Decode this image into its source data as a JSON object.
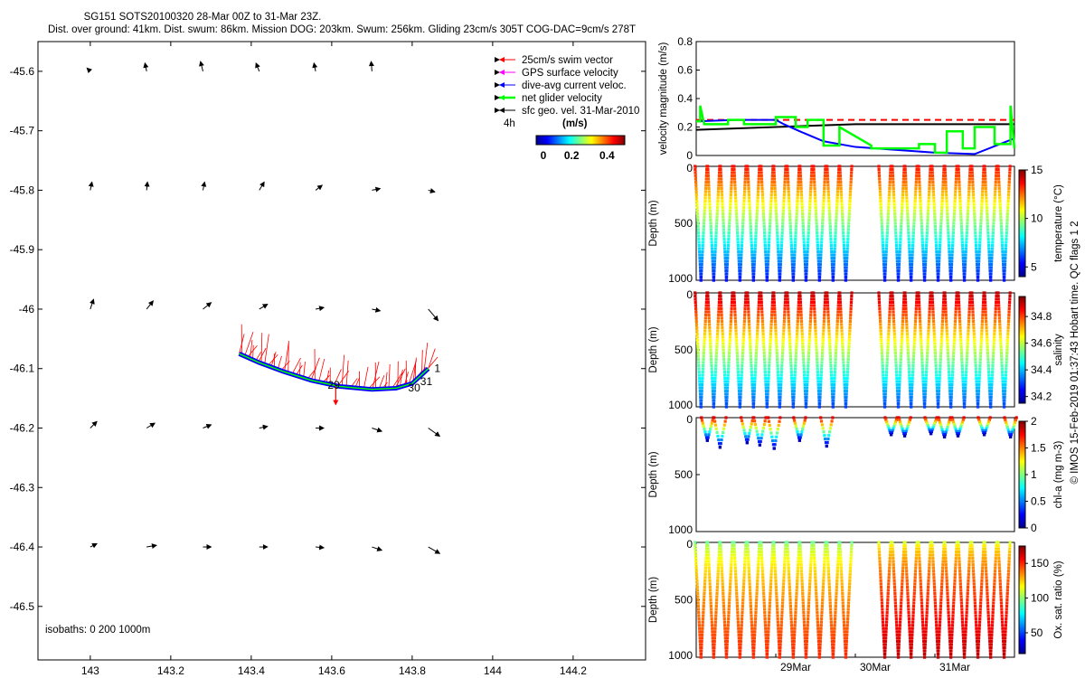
{
  "figure_title": {
    "line1": "SG151 SOTS20100320 28-Mar 00Z to 31-Mar 23Z.",
    "line2": "Dist. over ground: 41km. Dist. swum: 86km. Mission DOG: 203km. Swum: 256km. Gliding 23cm/s 305T COG-DAC=9cm/s 278T"
  },
  "watermark": "© IMOS 15-Feb-2019 01:37:43 Hobart time. QC flags 1  2",
  "colors": {
    "swim": "#ff0000",
    "gps": "#ff00ff",
    "dac": "#0000ff",
    "net": "#00ff00",
    "geo": "#000000"
  },
  "chart_data": [
    {
      "id": "map",
      "type": "scatter",
      "title": "glider track map",
      "xlim": [
        142.87,
        144.38
      ],
      "ylim": [
        -46.59,
        -45.55
      ],
      "xticks": [
        143,
        143.2,
        143.4,
        143.6,
        143.8,
        144,
        144.2
      ],
      "xtick_labels": [
        "143",
        "143.2",
        "143.4",
        "143.6",
        "143.8",
        "144",
        "144.2"
      ],
      "yticks": [
        -45.6,
        -45.7,
        -45.8,
        -45.9,
        -46,
        -46.1,
        -46.2,
        -46.3,
        -46.4,
        -46.5
      ],
      "ytick_labels": [
        "-45.6",
        "-45.7",
        "-45.8",
        "-45.9",
        "-46",
        "-46.1",
        "-46.2",
        "-46.3",
        "-46.4",
        "-46.5"
      ],
      "legend": [
        {
          "label": "25cm/s swim vector",
          "color": "#ff0000"
        },
        {
          "label": "GPS surface velocity",
          "color": "#ff00ff"
        },
        {
          "label": "dive-avg current veloc.",
          "color": "#0000ff"
        },
        {
          "label": "net glider velocity",
          "color": "#00ff00"
        },
        {
          "label": "sfc geo. vel. 31-Mar-2010",
          "color": "#000000"
        }
      ],
      "legend_position": "top-right",
      "colorbar": {
        "label": "(m/s)",
        "ticks": [
          "0",
          "0.2",
          "0.4"
        ],
        "range": [
          0,
          0.5
        ]
      },
      "scale_label": "4h",
      "isobaths_label": "isobaths: 0   200  1000m",
      "track": [
        [
          143.37,
          -46.075
        ],
        [
          143.42,
          -46.09
        ],
        [
          143.48,
          -46.105
        ],
        [
          143.55,
          -46.12
        ],
        [
          143.62,
          -46.13
        ],
        [
          143.7,
          -46.135
        ],
        [
          143.76,
          -46.133
        ],
        [
          143.8,
          -46.125
        ],
        [
          143.84,
          -46.1
        ]
      ],
      "track_labels": [
        {
          "text": "1",
          "lon": 143.855,
          "lat": -46.1
        },
        {
          "text": "31",
          "lon": 143.82,
          "lat": -46.122
        },
        {
          "text": "30",
          "lon": 143.79,
          "lat": -46.132
        },
        {
          "text": "29",
          "lon": 143.59,
          "lat": -46.128
        }
      ],
      "geo_grid_lon": [
        143.0,
        143.14,
        143.28,
        143.42,
        143.56,
        143.7,
        143.84,
        143.98,
        144.12,
        144.26
      ],
      "geo_grid_lat": [
        -45.6,
        -45.8,
        -46.0,
        -46.2,
        -46.4
      ],
      "geo_vectors": [
        [
          [
            -0.02,
            0.02
          ],
          [
            -0.01,
            0.05
          ],
          [
            -0.015,
            0.06
          ],
          [
            -0.02,
            0.05
          ],
          [
            -0.01,
            0.05
          ],
          [
            -0.005,
            0.06
          ],
          [
            0.0,
            0.0
          ],
          [
            0.0,
            0.0
          ],
          [
            0.0,
            0.0
          ],
          [
            0.0,
            0.0
          ]
        ],
        [
          [
            0.01,
            0.05
          ],
          [
            0.005,
            0.05
          ],
          [
            0.01,
            0.05
          ],
          [
            0.03,
            0.05
          ],
          [
            0.04,
            0.03
          ],
          [
            0.05,
            0.01
          ],
          [
            0.04,
            -0.01
          ],
          [
            0.0,
            0.0
          ],
          [
            0.0,
            0.0
          ],
          [
            0.0,
            0.0
          ]
        ],
        [
          [
            0.02,
            0.06
          ],
          [
            0.04,
            0.05
          ],
          [
            0.05,
            0.04
          ],
          [
            0.05,
            0.03
          ],
          [
            0.05,
            0.01
          ],
          [
            0.05,
            -0.01
          ],
          [
            0.06,
            -0.07
          ],
          [
            0.0,
            0.0
          ],
          [
            0.0,
            0.0
          ],
          [
            0.0,
            0.0
          ]
        ],
        [
          [
            0.04,
            0.04
          ],
          [
            0.05,
            0.03
          ],
          [
            0.05,
            0.02
          ],
          [
            0.05,
            0.01
          ],
          [
            0.05,
            0.0
          ],
          [
            0.06,
            -0.02
          ],
          [
            0.07,
            -0.05
          ],
          [
            0.0,
            0.0
          ],
          [
            0.0,
            0.0
          ],
          [
            0.0,
            0.0
          ]
        ],
        [
          [
            0.04,
            0.02
          ],
          [
            0.06,
            0.01
          ],
          [
            0.05,
            0.0
          ],
          [
            0.05,
            0.0
          ],
          [
            0.05,
            -0.005
          ],
          [
            0.06,
            -0.02
          ],
          [
            0.07,
            -0.04
          ],
          [
            0.0,
            0.0
          ],
          [
            0.0,
            0.0
          ],
          [
            0.0,
            0.0
          ]
        ]
      ]
    },
    {
      "id": "velocity",
      "type": "line",
      "ylabel": "velocity magnitude (m/s)",
      "ylim": [
        0,
        0.8
      ],
      "yticks": [
        "0",
        "0.2",
        "0.4",
        "0.6",
        "0.8"
      ],
      "xlim": [
        0,
        4
      ],
      "series": [
        {
          "name": "swim speed",
          "color": "#ff0000",
          "dashed": true,
          "x": [
            0,
            0.25,
            0.5,
            0.75,
            1.0,
            1.25,
            1.5,
            1.75,
            2.0,
            2.15,
            2.25,
            2.5,
            2.75,
            3.0,
            3.25,
            3.5,
            3.75,
            4.0
          ],
          "y": [
            0.25,
            0.25,
            0.25,
            0.25,
            0.25,
            0.25,
            0.25,
            0.25,
            0.25,
            0.25,
            0.25,
            0.25,
            0.25,
            0.25,
            0.25,
            0.25,
            0.25,
            0.25
          ]
        },
        {
          "name": "geostrophic",
          "color": "#000000",
          "x": [
            0,
            1,
            2,
            3,
            4
          ],
          "y": [
            0.18,
            0.2,
            0.22,
            0.22,
            0.22
          ]
        },
        {
          "name": "dive-avg current",
          "color": "#0000ff",
          "x": [
            0,
            0.5,
            1.0,
            1.1,
            1.3,
            1.6,
            2.0,
            2.5,
            3.0,
            3.5,
            4.0
          ],
          "y": [
            0.24,
            0.25,
            0.25,
            0.22,
            0.17,
            0.1,
            0.06,
            0.04,
            0.02,
            0.01,
            0.12
          ]
        },
        {
          "name": "net glider velocity",
          "color": "#00ff00",
          "x": [
            0,
            0.05,
            0.05,
            0.1,
            0.4,
            0.4,
            0.6,
            0.6,
            1.0,
            1.0,
            1.25,
            1.25,
            1.4,
            1.4,
            1.6,
            1.6,
            1.8,
            1.8,
            2.2,
            2.2,
            2.8,
            2.8,
            3.0,
            3.0,
            3.15,
            3.15,
            3.35,
            3.35,
            3.5,
            3.5,
            3.75,
            3.75,
            3.95,
            3.95,
            4.0
          ],
          "y": [
            0.24,
            0.24,
            0.35,
            0.22,
            0.22,
            0.25,
            0.25,
            0.22,
            0.22,
            0.27,
            0.27,
            0.2,
            0.2,
            0.25,
            0.25,
            0.07,
            0.07,
            0.2,
            0.07,
            0.05,
            0.05,
            0.08,
            0.08,
            0.02,
            0.02,
            0.17,
            0.17,
            0.05,
            0.05,
            0.2,
            0.2,
            0.08,
            0.08,
            0.35,
            0.05
          ]
        }
      ]
    },
    {
      "id": "temperature",
      "type": "scatter",
      "ylabel": "Depth (m)",
      "cbar_label": "temperature (°C)",
      "ylim": [
        0,
        1000
      ],
      "yticks": [
        "0",
        "500",
        "1000"
      ],
      "cbar_range": [
        4,
        15
      ],
      "cbar_ticks": [
        "5",
        "10",
        "15"
      ],
      "profile_times": [
        0.06,
        0.22,
        0.38,
        0.55,
        0.72,
        0.89,
        1.05,
        1.22,
        1.38,
        1.55,
        1.72,
        1.88,
        2.37,
        2.54,
        2.7,
        2.87,
        3.04,
        3.2,
        3.37,
        3.54,
        3.7,
        3.87
      ],
      "max_depth": 1000,
      "surface_value": 13.5,
      "bottom_value": 5.5
    },
    {
      "id": "salinity",
      "type": "scatter",
      "ylabel": "Depth (m)",
      "cbar_label": "salinity",
      "ylim": [
        0,
        1000
      ],
      "yticks": [
        "0",
        "500",
        "1000"
      ],
      "cbar_range": [
        34.15,
        34.95
      ],
      "cbar_ticks": [
        "34.2",
        "34.4",
        "34.6",
        "34.8"
      ],
      "profile_times": [
        0.06,
        0.22,
        0.38,
        0.55,
        0.72,
        0.89,
        1.05,
        1.22,
        1.38,
        1.55,
        1.72,
        1.88,
        2.37,
        2.54,
        2.7,
        2.87,
        3.04,
        3.2,
        3.37,
        3.54,
        3.7,
        3.87
      ],
      "max_depth": 1000,
      "surface_value": 34.9,
      "bottom_value": 34.3
    },
    {
      "id": "chlorophyll",
      "type": "scatter",
      "ylabel": "Depth (m)",
      "cbar_label": "chl-a (mg m-3)",
      "ylim": [
        0,
        1000
      ],
      "yticks": [
        "0",
        "500",
        "1000"
      ],
      "cbar_range": [
        0,
        2
      ],
      "cbar_ticks": [
        "0",
        "0.5",
        "1",
        "1.5",
        "2"
      ],
      "profile_times": [
        0.14,
        0.3,
        0.64,
        0.8,
        0.98,
        1.3,
        1.64,
        2.45,
        2.62,
        2.95,
        3.12,
        3.29,
        3.62,
        3.95
      ],
      "max_depths": [
        200,
        260,
        220,
        240,
        270,
        200,
        250,
        150,
        160,
        140,
        170,
        160,
        150,
        170
      ],
      "surface_value": 1.8,
      "bottom_value": 0.1
    },
    {
      "id": "oxygen",
      "type": "scatter",
      "ylabel": "Depth (m)",
      "cbar_label": "Ox. sat. ratio (%)",
      "ylim": [
        0,
        1000
      ],
      "yticks": [
        "0",
        "500",
        "1000"
      ],
      "cbar_range": [
        20,
        175
      ],
      "cbar_ticks": [
        "50",
        "100",
        "150"
      ],
      "profile_times": [
        0.06,
        0.22,
        0.38,
        0.55,
        0.72,
        0.89,
        1.05,
        1.22,
        1.38,
        1.55,
        1.72,
        1.88,
        2.37,
        2.54,
        2.7,
        2.87,
        3.04,
        3.2,
        3.37,
        3.54,
        3.7,
        3.87
      ],
      "max_depth": 1000,
      "surface_value": 95,
      "bottom_value": 150,
      "x_tick_labels": [
        "29Mar",
        "30Mar",
        "31Mar"
      ],
      "x_tick_positions": [
        1,
        2,
        3
      ]
    }
  ]
}
